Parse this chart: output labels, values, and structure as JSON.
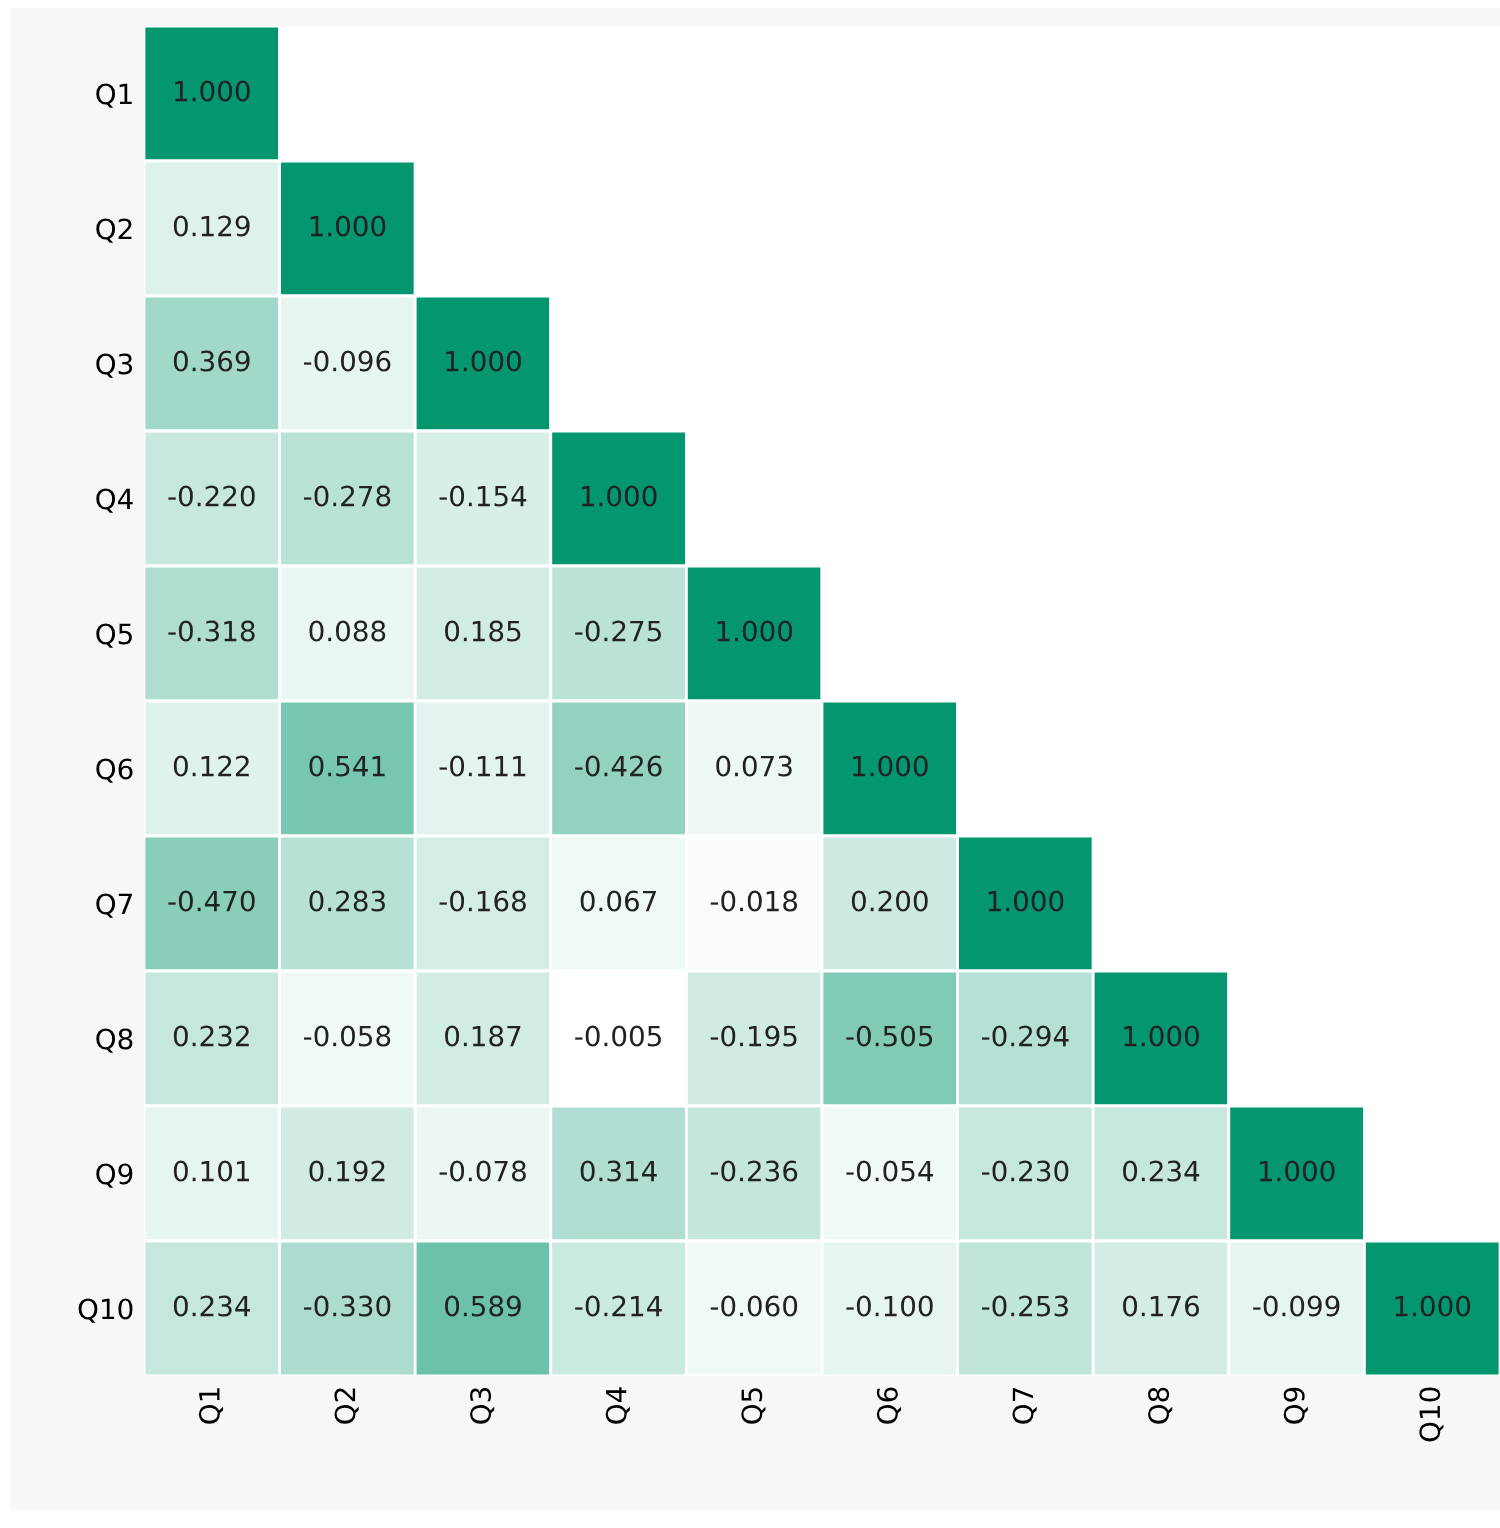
{
  "chart_data": {
    "type": "heatmap",
    "categories": [
      "Q1",
      "Q2",
      "Q3",
      "Q4",
      "Q5",
      "Q6",
      "Q7",
      "Q8",
      "Q9",
      "Q10"
    ],
    "y_categories": [
      "Q1",
      "Q2",
      "Q3",
      "Q4",
      "Q5",
      "Q6",
      "Q7",
      "Q8",
      "Q9",
      "Q10"
    ],
    "cells": [
      [
        1.0,
        null,
        null,
        null,
        null,
        null,
        null,
        null,
        null,
        null
      ],
      [
        0.129,
        1.0,
        null,
        null,
        null,
        null,
        null,
        null,
        null,
        null
      ],
      [
        0.369,
        -0.096,
        1.0,
        null,
        null,
        null,
        null,
        null,
        null,
        null
      ],
      [
        -0.22,
        -0.278,
        -0.154,
        1.0,
        null,
        null,
        null,
        null,
        null,
        null
      ],
      [
        -0.318,
        0.088,
        0.185,
        -0.275,
        1.0,
        null,
        null,
        null,
        null,
        null
      ],
      [
        0.122,
        0.541,
        -0.111,
        -0.426,
        0.073,
        1.0,
        null,
        null,
        null,
        null
      ],
      [
        -0.47,
        0.283,
        -0.168,
        0.067,
        -0.018,
        0.2,
        1.0,
        null,
        null,
        null
      ],
      [
        0.232,
        -0.058,
        0.187,
        -0.005,
        -0.195,
        -0.505,
        -0.294,
        1.0,
        null,
        null
      ],
      [
        0.101,
        0.192,
        -0.078,
        0.314,
        -0.236,
        -0.054,
        -0.23,
        0.234,
        1.0,
        null
      ],
      [
        0.234,
        -0.33,
        0.589,
        -0.214,
        -0.06,
        -0.1,
        -0.253,
        0.176,
        -0.099,
        1.0
      ]
    ],
    "cell_labels": [
      [
        "1.000",
        null,
        null,
        null,
        null,
        null,
        null,
        null,
        null,
        null
      ],
      [
        "0.129",
        "1.000",
        null,
        null,
        null,
        null,
        null,
        null,
        null,
        null
      ],
      [
        "0.369",
        "-0.096",
        "1.000",
        null,
        null,
        null,
        null,
        null,
        null,
        null
      ],
      [
        "-0.220",
        "-0.278",
        "-0.154",
        "1.000",
        null,
        null,
        null,
        null,
        null,
        null
      ],
      [
        "-0.318",
        "0.088",
        "0.185",
        "-0.275",
        "1.000",
        null,
        null,
        null,
        null,
        null
      ],
      [
        "0.122",
        "0.541",
        "-0.111",
        "-0.426",
        "0.073",
        "1.000",
        null,
        null,
        null,
        null
      ],
      [
        "-0.470",
        "0.283",
        "-0.168",
        "0.067",
        "-0.018",
        "0.200",
        "1.000",
        null,
        null,
        null
      ],
      [
        "0.232",
        "-0.058",
        "0.187",
        "-0.005",
        "-0.195",
        "-0.505",
        "-0.294",
        "1.000",
        null,
        null
      ],
      [
        "0.101",
        "0.192",
        "-0.078",
        "0.314",
        "-0.236",
        "-0.054",
        "-0.230",
        "0.234",
        "1.000",
        null
      ],
      [
        "0.234",
        "-0.330",
        "0.589",
        "-0.214",
        "-0.060",
        "-0.100",
        "-0.253",
        "0.176",
        "-0.099",
        "1.000"
      ]
    ],
    "color": "#03966f",
    "data_labels": true
  }
}
